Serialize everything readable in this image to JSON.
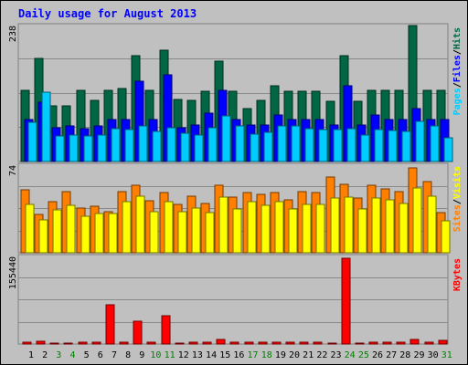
{
  "title": "Daily usage for August 2013",
  "colors": {
    "background": "#c0c0c0",
    "plot": "#c0c0c0",
    "title": "#0000ff",
    "day_weekday": "#000000",
    "day_weekend": "#008000",
    "hits": "#006644",
    "files": "#0000ff",
    "pages": "#00ccff",
    "visits": "#ffff00",
    "sites": "#ff8000",
    "kbytes": "#ff0000"
  },
  "chart_data": [
    {
      "type": "bar",
      "title": "Daily usage for August 2013",
      "categories": [
        "1",
        "2",
        "3",
        "4",
        "5",
        "6",
        "7",
        "8",
        "9",
        "10",
        "11",
        "12",
        "13",
        "14",
        "15",
        "16",
        "17",
        "18",
        "19",
        "20",
        "21",
        "22",
        "23",
        "24",
        "25",
        "26",
        "27",
        "28",
        "29",
        "30",
        "31"
      ],
      "weekend_days": [
        "3",
        "4",
        "10",
        "11",
        "17",
        "18",
        "24",
        "25",
        "31"
      ],
      "ylim": [
        0,
        238
      ],
      "y_tick_label": "238",
      "legend": [
        "Pages",
        "/",
        "Files",
        "/",
        "Hits"
      ],
      "series": [
        {
          "name": "Hits",
          "values": [
            124,
            181,
            98,
            98,
            124,
            107,
            124,
            128,
            185,
            124,
            195,
            108,
            107,
            123,
            175,
            123,
            93,
            107,
            133,
            123,
            123,
            123,
            106,
            186,
            106,
            124,
            124,
            124,
            238,
            124,
            124
          ]
        },
        {
          "name": "Files",
          "values": [
            74,
            104,
            59,
            62,
            58,
            62,
            74,
            74,
            141,
            74,
            152,
            59,
            64,
            84,
            125,
            74,
            64,
            64,
            82,
            74,
            74,
            74,
            64,
            132,
            64,
            82,
            74,
            74,
            92,
            74,
            74
          ]
        },
        {
          "name": "Pages",
          "values": [
            68,
            121,
            45,
            47,
            45,
            47,
            57,
            56,
            63,
            53,
            59,
            50,
            46,
            59,
            80,
            62,
            48,
            51,
            63,
            63,
            57,
            56,
            56,
            57,
            47,
            56,
            54,
            53,
            70,
            63,
            41
          ]
        }
      ]
    },
    {
      "type": "bar",
      "ylim": [
        0,
        74
      ],
      "y_tick_label": "74",
      "legend": [
        "Sites",
        "/",
        "Visits"
      ],
      "series": [
        {
          "name": "Sites",
          "values": [
            53,
            32,
            43,
            52,
            38,
            39,
            35,
            52,
            57,
            44,
            51,
            41,
            48,
            42,
            57,
            47,
            51,
            49,
            51,
            45,
            52,
            51,
            64,
            58,
            46,
            57,
            54,
            52,
            72,
            60,
            34
          ]
        },
        {
          "name": "Visits",
          "values": [
            41,
            28,
            36,
            40,
            31,
            33,
            33,
            43,
            48,
            35,
            43,
            35,
            38,
            34,
            47,
            37,
            43,
            40,
            43,
            37,
            41,
            41,
            46,
            47,
            37,
            46,
            45,
            42,
            55,
            48,
            27
          ]
        }
      ]
    },
    {
      "type": "bar",
      "ylim": [
        0,
        155440
      ],
      "y_tick_label": "155440",
      "legend": [
        "KBytes"
      ],
      "series": [
        {
          "name": "KBytes",
          "values": [
            3000,
            5000,
            2000,
            2000,
            4000,
            3000,
            70000,
            3000,
            40000,
            3000,
            50000,
            2000,
            3000,
            3000,
            8000,
            3000,
            3000,
            3000,
            3000,
            3000,
            3000,
            3000,
            2000,
            152000,
            2000,
            3000,
            3000,
            3000,
            8000,
            3000,
            7000
          ]
        }
      ]
    }
  ]
}
